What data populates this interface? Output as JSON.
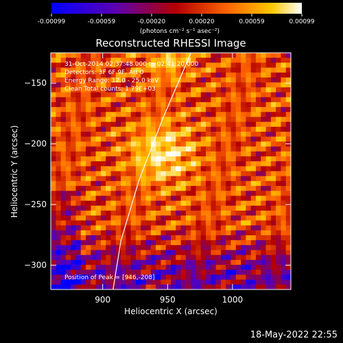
{
  "chart_data": {
    "type": "heatmap",
    "title": "Reconstructed RHESSI Image",
    "xlabel": "Heliocentric X (arcsec)",
    "ylabel": "Heliocentric Y (arcsec)",
    "xlim": [
      860,
      1045
    ],
    "ylim": [
      -320,
      -125
    ],
    "xticks": [
      900,
      950,
      1000
    ],
    "yticks": [
      -150,
      -200,
      -250,
      -300
    ],
    "annotations": [
      "31-Oct-2014 02:37:48.000 to 02:41:20.000",
      "Detectors: 3F 6F 9F, Att 0",
      "Energy Range: 12.0 - 25.0 keV",
      "Clean    Total counts: 1.79E+03"
    ],
    "peak_label": "Position of Peak = [946,-208]",
    "peak": [
      946,
      -208
    ],
    "colorbar": {
      "min": -0.00099,
      "max": 0.00099,
      "ticks": [
        "-0.00099",
        "-0.00059",
        "-0.00020",
        "0.00020",
        "0.00059",
        "0.00099"
      ],
      "label": "(photons cm⁻² s⁻¹ asec⁻²)",
      "colors": [
        "#0000ff",
        "#5a00b4",
        "#b40000",
        "#ff6400",
        "#ffc800",
        "#ffffff"
      ]
    },
    "limb": [
      [
        968,
        -125
      ],
      [
        946,
        -180
      ],
      [
        928,
        -230
      ],
      [
        914,
        -280
      ],
      [
        908,
        -320
      ]
    ]
  },
  "footer": {
    "date": "18-May-2022 22:55"
  }
}
